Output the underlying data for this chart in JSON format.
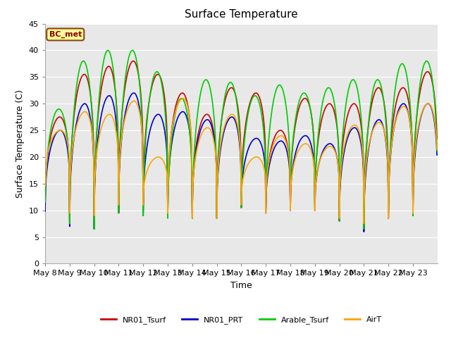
{
  "title": "Surface Temperature",
  "xlabel": "Time",
  "ylabel": "Surface Temperature (C)",
  "ylim": [
    0,
    45
  ],
  "yticks": [
    0,
    5,
    10,
    15,
    20,
    25,
    30,
    35,
    40,
    45
  ],
  "annotation_text": "BC_met",
  "annotation_bbox_facecolor": "#FFFF99",
  "annotation_bbox_edgecolor": "#8B4513",
  "plot_bg_color": "#E8E8E8",
  "series": {
    "NR01_Tsurf": {
      "color": "#CC0000",
      "lw": 1.2
    },
    "NR01_PRT": {
      "color": "#0000CC",
      "lw": 1.2
    },
    "Arable_Tsurf": {
      "color": "#00CC00",
      "lw": 1.2
    },
    "AirT": {
      "color": "#FFA500",
      "lw": 1.2
    }
  },
  "x_tick_labels": [
    "May 8",
    "May 9",
    "May 10",
    "May 11",
    "May 12",
    "May 13",
    "May 14",
    "May 15",
    "May 16",
    "May 17",
    "May 18",
    "May 19",
    "May 20",
    "May 21",
    "May 22",
    "May 23"
  ],
  "days": 16,
  "points_per_day": 48,
  "daily_min_NR01": [
    9.8,
    7.0,
    6.5,
    9.5,
    9.0,
    8.8,
    8.5,
    8.5,
    10.5,
    9.5,
    10.0,
    10.0,
    8.0,
    6.0,
    8.5,
    9.0
  ],
  "daily_max_NR01_Tsurf": [
    27.5,
    35.5,
    37.0,
    38.0,
    35.5,
    32.0,
    28.0,
    33.0,
    32.0,
    25.0,
    31.0,
    30.0,
    30.0,
    33.0,
    33.0,
    36.0
  ],
  "daily_max_NR01_PRT": [
    25.0,
    30.0,
    31.5,
    32.0,
    28.0,
    28.5,
    27.0,
    27.5,
    23.5,
    23.0,
    24.0,
    22.5,
    25.5,
    27.0,
    30.0,
    30.0
  ],
  "daily_min_Arable": [
    11.5,
    7.5,
    6.5,
    9.5,
    9.0,
    8.5,
    8.5,
    8.5,
    10.5,
    9.5,
    12.5,
    10.0,
    8.0,
    6.5,
    8.5,
    9.0
  ],
  "daily_max_Arable_Tsurf": [
    29.0,
    38.0,
    40.0,
    40.0,
    36.0,
    31.0,
    34.5,
    34.0,
    31.5,
    33.5,
    32.0,
    33.0,
    34.5,
    34.5,
    37.5,
    38.0
  ],
  "daily_min_AirT": [
    14.0,
    9.5,
    9.0,
    11.0,
    11.0,
    9.5,
    8.5,
    8.5,
    11.0,
    9.5,
    10.0,
    10.0,
    8.5,
    7.5,
    8.5,
    9.5
  ],
  "daily_max_AirT": [
    25.0,
    28.5,
    28.0,
    30.5,
    20.0,
    31.0,
    25.5,
    28.0,
    20.0,
    24.0,
    22.5,
    22.0,
    26.0,
    26.5,
    29.5,
    30.0
  ]
}
